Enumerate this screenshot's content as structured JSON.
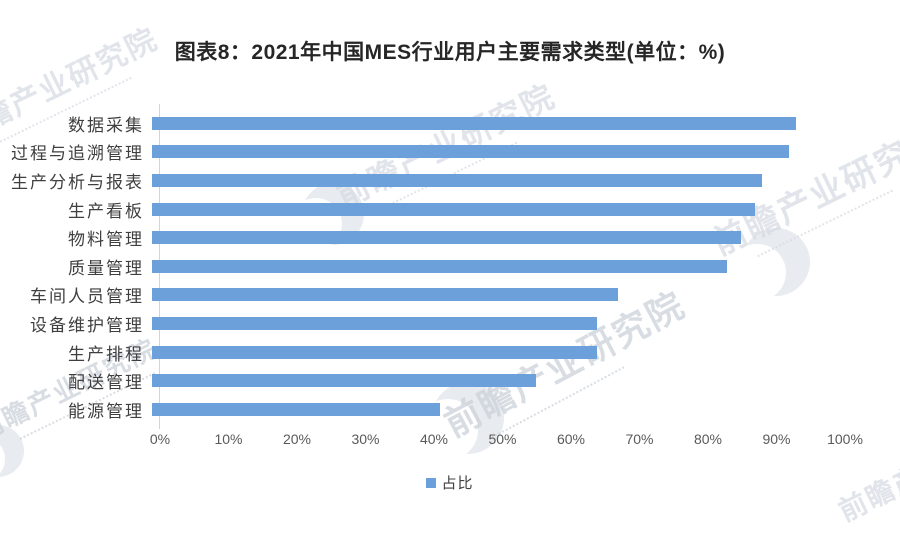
{
  "title": "图表8：2021年中国MES行业用户主要需求类型(单位：%)",
  "legend": {
    "label": "占比"
  },
  "watermark": {
    "brand": "前瞻产业研究院"
  },
  "colors": {
    "bar": "#6BA0DB",
    "axis_line": "#d4d4d4",
    "tick_label": "#595959",
    "category_label": "#3f3f3f",
    "title": "#262626",
    "watermark": "#d7dce3"
  },
  "chart_data": {
    "type": "bar",
    "orientation": "horizontal",
    "title": "图表8：2021年中国MES行业用户主要需求类型(单位：%)",
    "series_name": "占比",
    "categories": [
      "数据采集",
      "过程与追溯管理",
      "生产分析与报表",
      "生产看板",
      "物料管理",
      "质量管理",
      "车间人员管理",
      "设备维护管理",
      "生产排程",
      "配送管理",
      "能源管理"
    ],
    "values": [
      94,
      93,
      89,
      88,
      86,
      84,
      68,
      65,
      65,
      56,
      42
    ],
    "xlabel": "",
    "ylabel": "",
    "xlim": [
      0,
      100
    ],
    "x_ticks": [
      "0%",
      "10%",
      "20%",
      "30%",
      "40%",
      "50%",
      "60%",
      "70%",
      "80%",
      "90%",
      "100%"
    ],
    "grid": false,
    "legend_position": "bottom"
  }
}
